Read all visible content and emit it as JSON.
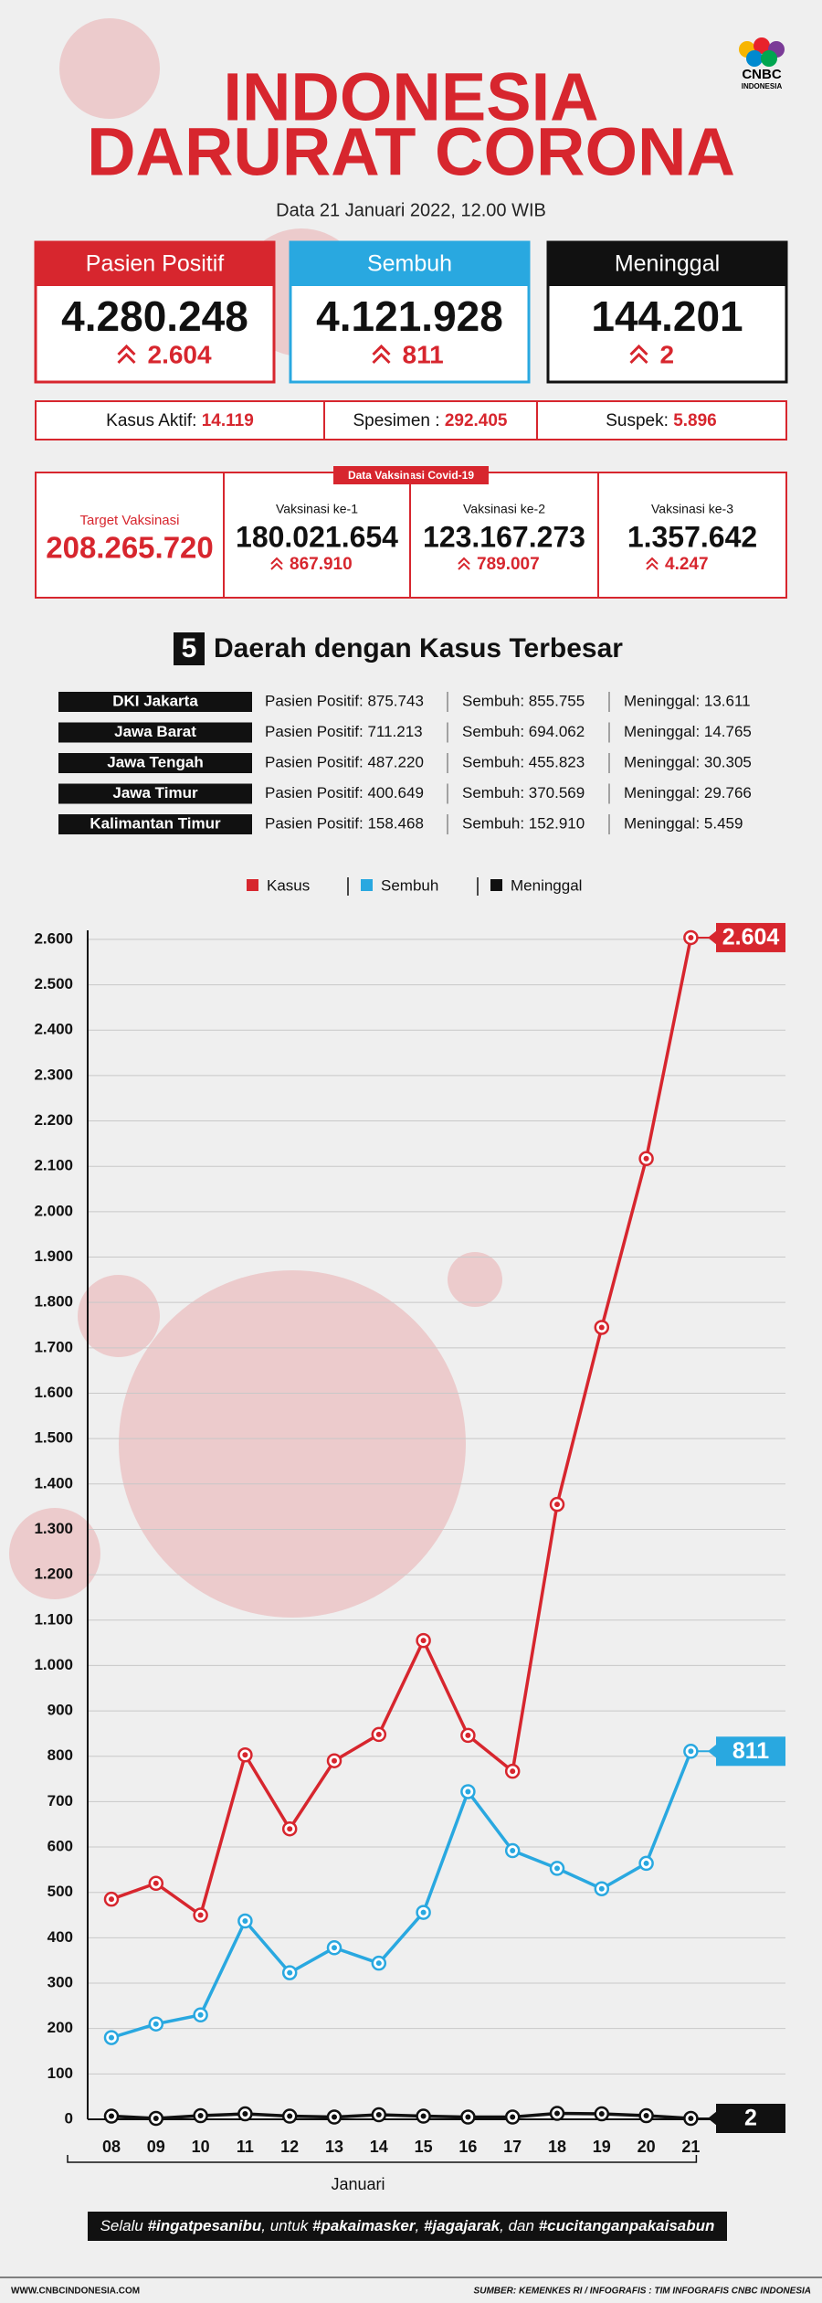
{
  "header": {
    "title_line1": "INDONESIA",
    "title_line2": "DARURAT CORONA",
    "subtitle": "Data 21 Januari 2022, 12.00 WIB",
    "logo": "CNBC",
    "logo_sub": "INDONESIA"
  },
  "stats": [
    {
      "label": "Pasien Positif",
      "value": "4.280.248",
      "change": "2.604"
    },
    {
      "label": "Sembuh",
      "value": "4.121.928",
      "change": "811"
    },
    {
      "label": "Meninggal",
      "value": "144.201",
      "change": "2"
    }
  ],
  "summary": [
    {
      "label": "Kasus Aktif:",
      "value": "14.119"
    },
    {
      "label": "Spesimen :",
      "value": "292.405"
    },
    {
      "label": "Suspek:",
      "value": "5.896"
    }
  ],
  "vaccination": {
    "title": "Data Vaksinasi Covid-19",
    "target_label": "Target Vaksinasi",
    "target_value": "208.265.720",
    "doses": [
      {
        "label": "Vaksinasi ke-1",
        "value": "180.021.654",
        "change": "867.910"
      },
      {
        "label": "Vaksinasi ke-2",
        "value": "123.167.273",
        "change": "789.007"
      },
      {
        "label": "Vaksinasi ke-3",
        "value": "1.357.642",
        "change": "4.247"
      }
    ]
  },
  "regions": {
    "number": "5",
    "title": "Daerah dengan Kasus Terbesar",
    "rows": [
      {
        "name": "DKI Jakarta",
        "positif": "Pasien Positif: 875.743",
        "sembuh": "Sembuh: 855.755",
        "meninggal": "Meninggal: 13.611"
      },
      {
        "name": "Jawa Barat",
        "positif": "Pasien Positif: 711.213",
        "sembuh": "Sembuh: 694.062",
        "meninggal": "Meninggal: 14.765"
      },
      {
        "name": "Jawa Tengah",
        "positif": "Pasien Positif: 487.220",
        "sembuh": "Sembuh: 455.823",
        "meninggal": "Meninggal: 30.305"
      },
      {
        "name": "Jawa Timur",
        "positif": "Pasien Positif: 400.649",
        "sembuh": "Sembuh: 370.569",
        "meninggal": "Meninggal: 29.766"
      },
      {
        "name": "Kalimantan Timur",
        "positif": "Pasien Positif: 158.468",
        "sembuh": "Sembuh: 152.910",
        "meninggal": "Meninggal: 5.459"
      }
    ]
  },
  "chart_data": {
    "type": "line",
    "x_label": "Januari",
    "categories": [
      "08",
      "09",
      "10",
      "11",
      "12",
      "13",
      "14",
      "15",
      "16",
      "17",
      "18",
      "19",
      "20",
      "21"
    ],
    "series": [
      {
        "name": "Kasus",
        "color": "#d7262e",
        "values": [
          485,
          520,
          450,
          803,
          640,
          790,
          848,
          1055,
          846,
          767,
          1355,
          1745,
          2117,
          2604
        ],
        "value_labels": [
          null,
          null,
          null,
          null,
          null,
          null,
          null,
          null,
          null,
          null,
          null,
          null,
          null,
          "2.604"
        ]
      },
      {
        "name": "Sembuh",
        "color": "#29a8e0",
        "values": [
          180,
          210,
          230,
          437,
          323,
          378,
          344,
          456,
          722,
          592,
          553,
          508,
          564,
          811
        ],
        "value_labels": [
          null,
          null,
          null,
          null,
          null,
          null,
          null,
          null,
          null,
          null,
          null,
          null,
          null,
          "811"
        ]
      },
      {
        "name": "Meninggal",
        "color": "#111111",
        "values": [
          7,
          2,
          8,
          12,
          7,
          5,
          10,
          7,
          5,
          5,
          13,
          12,
          8,
          2
        ],
        "value_labels": [
          null,
          null,
          null,
          null,
          null,
          null,
          null,
          null,
          null,
          null,
          null,
          null,
          null,
          "2"
        ]
      }
    ],
    "ylim": [
      0,
      2620
    ],
    "yticks": [
      0,
      100,
      200,
      300,
      400,
      500,
      600,
      700,
      800,
      900,
      {
        "value": 1000,
        "label": "1.000"
      },
      {
        "value": 1100,
        "label": "1.100"
      },
      {
        "value": 1200,
        "label": "1.200"
      },
      {
        "value": 1300,
        "label": "1.300"
      },
      {
        "value": 1400,
        "label": "1.400"
      },
      {
        "value": 1500,
        "label": "1.500"
      },
      {
        "value": 1600,
        "label": "1.600"
      },
      {
        "value": 1700,
        "label": "1.700"
      },
      {
        "value": 1800,
        "label": "1.800"
      },
      {
        "value": 1900,
        "label": "1.900"
      },
      {
        "value": 2000,
        "label": "2.000"
      },
      {
        "value": 2100,
        "label": "2.100"
      },
      {
        "value": 2200,
        "label": "2.200"
      },
      {
        "value": 2300,
        "label": "2.300"
      },
      {
        "value": 2400,
        "label": "2.400"
      },
      {
        "value": 2500,
        "label": "2.500"
      },
      {
        "value": 2600,
        "label": "2.600"
      }
    ],
    "grid": true
  },
  "footer": {
    "slogan": [
      "Selalu ",
      "#ingatpesanibu",
      ", untuk ",
      "#pakaimasker",
      ", ",
      "#jagajarak",
      ", dan ",
      "#cucitanganpakaisabun"
    ],
    "website": "WWW.CNBCINDONESIA.COM",
    "source": "SUMBER: KEMENKES RI / INFOGRAFIS : TIM INFOGRAFIS CNBC INDONESIA"
  }
}
